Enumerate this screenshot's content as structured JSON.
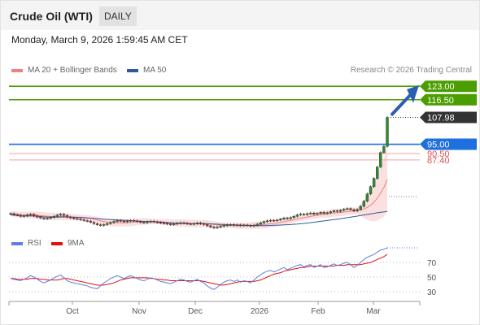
{
  "header": {
    "title": "Crude Oil (WTI)",
    "period": "DAILY"
  },
  "timestamp": "Monday, March 9, 2026 1:59:45 AM CET",
  "legend": {
    "bollinger": "MA 20 + Bollinger Bands",
    "ma50": "MA 50",
    "rsi": "RSI",
    "rsi_ma": "9MA"
  },
  "credit": "Research © 2026 Trading Central",
  "colors": {
    "bollinger": "#f08080",
    "ma50": "#2f5a9b",
    "resistance": "#4b9d00",
    "support": "#1e6fe0",
    "pivot_red": "#e05050",
    "price_tag": "#333333",
    "rsi": "#5b7fe0",
    "rsi_ma": "#e01010",
    "arrow": "#2a5fb0"
  },
  "chart_data": {
    "type": "candlestick",
    "x_ticks": [
      "Oct",
      "Nov",
      "Dec",
      "2026",
      "Feb",
      "Mar"
    ],
    "price": {
      "ylim": [
        54,
        127
      ],
      "last_price": 107.98,
      "levels": [
        {
          "value": 123.0,
          "label": "123.00",
          "kind": "resistance"
        },
        {
          "value": 116.5,
          "label": "116.50",
          "kind": "resistance"
        },
        {
          "value": 95.0,
          "label": "95.00",
          "kind": "support"
        },
        {
          "value": 90.5,
          "label": "90.50",
          "kind": "pivot"
        },
        {
          "value": 87.4,
          "label": "87.40",
          "kind": "pivot"
        }
      ],
      "candles_close": [
        61.5,
        61.0,
        60.8,
        60.2,
        60.5,
        60.9,
        61.2,
        60.4,
        59.8,
        59.4,
        59.0,
        59.3,
        59.6,
        60.2,
        60.8,
        61.2,
        60.6,
        59.8,
        59.4,
        59.1,
        58.8,
        58.5,
        58.1,
        57.9,
        57.3,
        56.6,
        56.1,
        55.8,
        56.2,
        56.7,
        57.2,
        57.7,
        58.2,
        57.9,
        57.6,
        57.9,
        58.2,
        58.0,
        57.6,
        57.3,
        57.1,
        57.5,
        57.8,
        57.5,
        57.2,
        57.0,
        56.8,
        56.5,
        56.2,
        56.5,
        56.8,
        57.1,
        56.9,
        56.6,
        56.4,
        56.7,
        57.0,
        56.6,
        56.2,
        55.6,
        55.0,
        54.6,
        55.0,
        55.4,
        55.8,
        56.0,
        56.2,
        55.9,
        56.1,
        55.7,
        56.0,
        55.8,
        55.5,
        55.9,
        56.4,
        57.0,
        57.6,
        58.0,
        58.3,
        58.1,
        58.4,
        58.9,
        59.4,
        59.1,
        59.6,
        60.2,
        60.9,
        61.3,
        61.0,
        61.5,
        61.8,
        61.2,
        61.6,
        62.1,
        61.6,
        61.9,
        62.4,
        62.9,
        62.6,
        63.1,
        63.6,
        63.9,
        63.4,
        62.8,
        63.5,
        65.0,
        67.5,
        71.0,
        74.5,
        78.5,
        84.0,
        91.0,
        94.0,
        107.98
      ],
      "ma20_end": 69,
      "ma50_end": 62
    },
    "rsi": {
      "ylim": [
        20,
        90
      ],
      "y_ticks": [
        70,
        50,
        30
      ],
      "series_rsi": [
        48,
        47,
        46,
        45,
        47,
        49,
        52,
        50,
        47,
        44,
        42,
        44,
        46,
        49,
        51,
        53,
        49,
        45,
        43,
        42,
        41,
        40,
        39,
        38,
        36,
        35,
        34,
        38,
        42,
        45,
        48,
        50,
        52,
        50,
        48,
        50,
        52,
        50,
        48,
        46,
        45,
        47,
        49,
        48,
        46,
        44,
        43,
        42,
        41,
        43,
        45,
        47,
        46,
        44,
        43,
        45,
        47,
        44,
        42,
        38,
        35,
        33,
        36,
        40,
        43,
        45,
        46,
        44,
        46,
        43,
        45,
        44,
        42,
        46,
        50,
        53,
        56,
        58,
        59,
        57,
        59,
        61,
        63,
        60,
        62,
        64,
        66,
        67,
        64,
        66,
        67,
        63,
        65,
        67,
        63,
        64,
        66,
        68,
        66,
        67,
        69,
        70,
        67,
        63,
        66,
        70,
        74,
        77,
        79,
        81,
        84,
        87,
        88,
        90
      ],
      "series_ma": [
        48,
        48,
        47,
        47,
        47,
        47,
        48,
        48,
        48,
        47,
        47,
        46,
        46,
        46,
        46,
        47,
        48,
        48,
        47,
        46,
        45,
        44,
        43,
        42,
        41,
        40,
        39,
        39,
        39,
        40,
        41,
        42,
        44,
        46,
        47,
        48,
        49,
        49,
        49,
        49,
        49,
        49,
        48,
        48,
        47,
        47,
        46,
        46,
        45,
        45,
        45,
        45,
        45,
        45,
        45,
        45,
        45,
        45,
        44,
        43,
        42,
        41,
        40,
        39,
        39,
        40,
        41,
        42,
        43,
        44,
        44,
        44,
        44,
        44,
        45,
        46,
        48,
        50,
        52,
        54,
        55,
        56,
        58,
        59,
        60,
        61,
        62,
        63,
        63,
        64,
        65,
        65,
        65,
        65,
        65,
        65,
        65,
        65,
        66,
        66,
        66,
        67,
        67,
        67,
        67,
        67,
        68,
        69,
        70,
        72,
        74,
        76,
        78,
        81
      ]
    }
  }
}
